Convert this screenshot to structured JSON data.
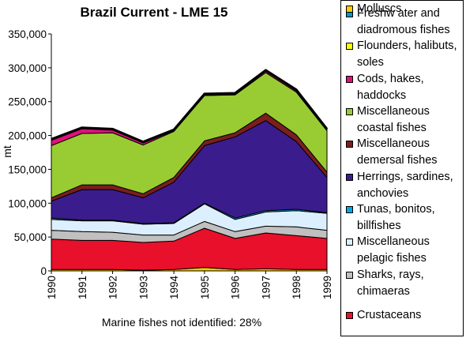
{
  "chart_data": {
    "type": "area",
    "title": "Brazil Current - LME 15",
    "xlabel": "",
    "ylabel": "mt",
    "note": "Marine fishes not identified: 28%",
    "ylim": [
      0,
      350000
    ],
    "yticks": [
      "0",
      "50,000",
      "100,000",
      "150,000",
      "200,000",
      "250,000",
      "300,000",
      "350,000"
    ],
    "categories": [
      "1990",
      "1991",
      "1992",
      "1993",
      "1994",
      "1995",
      "1996",
      "1997",
      "1998",
      "1999"
    ],
    "stacked": true,
    "grid": false,
    "legend_position": "right",
    "series": [
      {
        "name": "Molluscs",
        "color": "#ffcc00",
        "values": [
          2000,
          2000,
          2000,
          1000,
          2000,
          5000,
          2000,
          3000,
          2000,
          2000
        ]
      },
      {
        "name": "Crustaceans",
        "color": "#e8102a",
        "values": [
          45000,
          43000,
          43000,
          41000,
          42000,
          58000,
          46000,
          53000,
          50000,
          46000
        ]
      },
      {
        "name": "Sharks, rays,\nchimaeras",
        "color": "#c0c0c0",
        "values": [
          13000,
          13000,
          12000,
          11000,
          9000,
          10000,
          10000,
          10000,
          13000,
          12000
        ]
      },
      {
        "name": "Miscellaneous\npelagic fishes",
        "color": "#dcefff",
        "values": [
          16000,
          16000,
          17000,
          16000,
          17000,
          26000,
          18000,
          21000,
          24000,
          25000
        ]
      },
      {
        "name": "Tunas, bonitos,\nbillfishes",
        "color": "#00a8e8",
        "values": [
          2000,
          1000,
          1000,
          1000,
          1000,
          1000,
          2000,
          2000,
          2000,
          1000
        ]
      },
      {
        "name": "Herrings, sardines,\nanchovies",
        "color": "#3b1c8c",
        "values": [
          25000,
          45000,
          45000,
          38000,
          60000,
          85000,
          120000,
          133000,
          100000,
          52000
        ]
      },
      {
        "name": "Miscellaneous\ndemersal fishes",
        "color": "#7a1e1e",
        "values": [
          5000,
          7000,
          7000,
          6000,
          7000,
          7000,
          6000,
          11000,
          10000,
          8000
        ]
      },
      {
        "name": "Miscellaneous\ncoastal fishes",
        "color": "#99cc33",
        "values": [
          77000,
          76000,
          77000,
          72000,
          68000,
          67000,
          56000,
          60000,
          63000,
          61000
        ]
      },
      {
        "name": "Cods, hakes,\nhaddocks",
        "color": "#e0107a",
        "values": [
          8000,
          7000,
          4000,
          3000,
          1000,
          1000,
          1000,
          2000,
          2000,
          1000
        ]
      },
      {
        "name": "Flounders, halibuts,\nsoles",
        "color": "#ffff00",
        "values": [
          1000,
          1000,
          1000,
          1000,
          1000,
          1000,
          1000,
          1000,
          1000,
          1000
        ]
      },
      {
        "name": "Freshw ater and\ndiadromous fishes",
        "color": "#0099c8",
        "values": [
          500,
          500,
          500,
          500,
          500,
          500,
          500,
          500,
          500,
          500
        ]
      }
    ]
  }
}
